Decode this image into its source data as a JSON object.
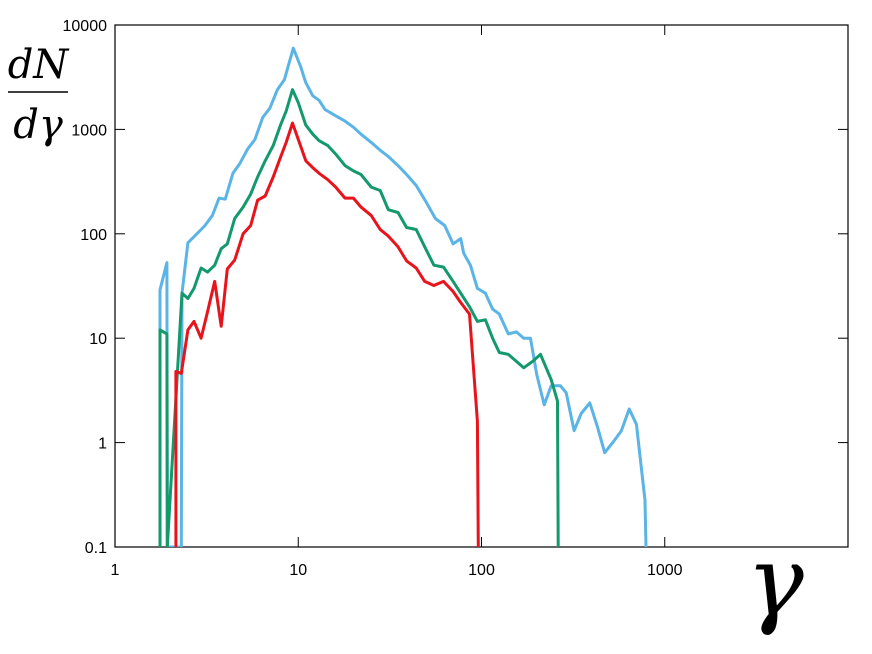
{
  "chart_data": {
    "type": "line",
    "log_x": true,
    "log_y": true,
    "ylabel_numerator": "dN",
    "ylabel_denominator": "dγ",
    "xlabel": "γ",
    "xlim": [
      1,
      10000
    ],
    "ylim": [
      0.1,
      10000
    ],
    "xticks": [
      1,
      10,
      100,
      1000
    ],
    "yticks": [
      0.1,
      1,
      10,
      100,
      1000,
      10000
    ],
    "series": [
      {
        "color": "#5ab4e5",
        "x": [
          1.76,
          1.76,
          1.92,
          1.93,
          2.3,
          2.32,
          2.5,
          2.8,
          3.1,
          3.4,
          3.7,
          4.0,
          4.4,
          4.8,
          5.3,
          5.8,
          6.4,
          7.0,
          7.7,
          8.4,
          9.4,
          10.3,
          11,
          12,
          13,
          14,
          16,
          18,
          20,
          22,
          25,
          28,
          31,
          35,
          39,
          44,
          50,
          56,
          63,
          70,
          77,
          80,
          87,
          95,
          105,
          115,
          125,
          140,
          155,
          170,
          185,
          200,
          220,
          240,
          270,
          290,
          320,
          350,
          390,
          430,
          470,
          520,
          580,
          640,
          700,
          780,
          790
        ],
        "values": [
          0.1,
          29,
          53,
          0.1,
          0.1,
          27,
          82,
          100,
          120,
          150,
          220,
          215,
          380,
          470,
          650,
          800,
          1300,
          1600,
          2400,
          3000,
          6000,
          4000,
          2800,
          2100,
          1900,
          1550,
          1350,
          1200,
          1050,
          900,
          750,
          630,
          550,
          450,
          370,
          290,
          200,
          140,
          120,
          80,
          90,
          65,
          50,
          30,
          27,
          19,
          17,
          11,
          11.5,
          10,
          10,
          4.5,
          2.3,
          3.5,
          3.5,
          3,
          1.3,
          1.9,
          2.4,
          1.4,
          0.8,
          1.0,
          1.3,
          2.1,
          1.5,
          0.28,
          0.1
        ]
      },
      {
        "color": "#13996b",
        "x": [
          1.76,
          1.76,
          1.92,
          1.93,
          2.32,
          2.5,
          2.7,
          2.95,
          3.2,
          3.5,
          3.8,
          4.1,
          4.5,
          5.0,
          5.5,
          6.0,
          6.6,
          7.3,
          8.0,
          8.6,
          9.3,
          10,
          11,
          12,
          13,
          14.5,
          16,
          18,
          20,
          22,
          25,
          28,
          31,
          35,
          39,
          44,
          49,
          55,
          62,
          70,
          77,
          86,
          95,
          105,
          115,
          125,
          140,
          155,
          170,
          190,
          210,
          240,
          260,
          262
        ],
        "values": [
          0.1,
          12,
          11,
          0.1,
          27,
          24,
          30,
          47,
          43,
          50,
          72,
          80,
          140,
          180,
          240,
          350,
          500,
          700,
          1100,
          1500,
          2400,
          1800,
          1100,
          900,
          780,
          700,
          580,
          450,
          400,
          370,
          280,
          260,
          170,
          160,
          115,
          110,
          75,
          50,
          48,
          35,
          27,
          20,
          14.5,
          15,
          10,
          7.3,
          7,
          6,
          5.2,
          6,
          7,
          4,
          2.5,
          0.1
        ]
      },
      {
        "color": "#e8141c",
        "x": [
          2.15,
          2.15,
          2.3,
          2.5,
          2.7,
          2.95,
          3.2,
          3.5,
          3.8,
          4.1,
          4.5,
          5.0,
          5.5,
          6.0,
          6.6,
          7.3,
          8.0,
          8.6,
          9.3,
          10,
          11,
          12,
          13,
          14.5,
          16,
          18,
          20,
          22,
          25,
          28,
          31,
          35,
          39,
          44,
          49,
          55,
          62,
          70,
          77,
          86,
          95,
          96
        ],
        "values": [
          0.1,
          4.8,
          4.6,
          12,
          14.5,
          10,
          18,
          35,
          13,
          46,
          56,
          100,
          120,
          210,
          230,
          350,
          540,
          750,
          1150,
          800,
          500,
          430,
          380,
          330,
          280,
          220,
          220,
          180,
          150,
          110,
          95,
          75,
          55,
          47,
          35,
          32,
          35,
          28,
          22,
          17,
          1.6,
          0.1
        ]
      }
    ]
  }
}
